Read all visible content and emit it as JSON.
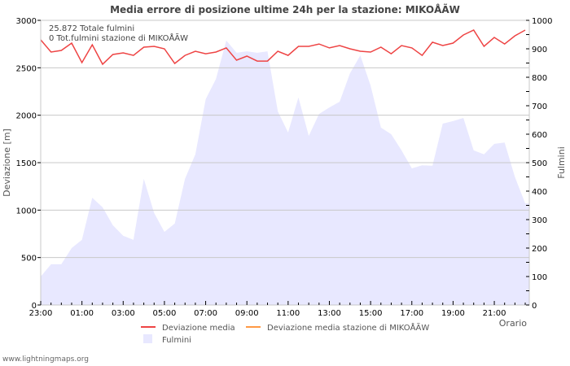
{
  "chart_data": {
    "type": "line",
    "title": "Media errore di posizione ultime 24h per la stazione: MIKOÅ\u001fÃ\u001fW",
    "xlabel": "Orario",
    "ylabel": "Deviazione  [m]",
    "y2label": "Fulmini",
    "ylim": [
      0,
      3000
    ],
    "y2lim": [
      0,
      1000
    ],
    "yticks": [
      0,
      500,
      1000,
      1500,
      2000,
      2500,
      3000
    ],
    "y2ticks": [
      0,
      100,
      200,
      300,
      400,
      500,
      600,
      700,
      800,
      900,
      1000
    ],
    "xticks": [
      "23:00",
      "01:00",
      "03:00",
      "05:00",
      "07:00",
      "09:00",
      "11:00",
      "13:00",
      "15:00",
      "17:00",
      "19:00",
      "21:00"
    ],
    "grid": true,
    "legend_position": "bottom",
    "annotations": [
      "25.872 Totale fulmini",
      "0 Tot.fulmini stazione di MIKOÅ\u001fÃ\u001fW"
    ],
    "x": [
      "23:00",
      "23:30",
      "00:00",
      "00:30",
      "01:00",
      "01:30",
      "02:00",
      "02:30",
      "03:00",
      "03:30",
      "04:00",
      "04:30",
      "05:00",
      "05:30",
      "06:00",
      "06:30",
      "07:00",
      "07:30",
      "08:00",
      "08:30",
      "09:00",
      "09:30",
      "10:00",
      "10:30",
      "11:00",
      "11:30",
      "12:00",
      "12:30",
      "13:00",
      "13:30",
      "14:00",
      "14:30",
      "15:00",
      "15:30",
      "16:00",
      "16:30",
      "17:00",
      "17:30",
      "18:00",
      "18:30",
      "19:00",
      "19:30",
      "20:00",
      "20:30",
      "21:00",
      "21:30",
      "22:00",
      "22:30"
    ],
    "series": [
      {
        "name": "Deviazione media",
        "axis": "left",
        "type": "line",
        "color": "#ee4444",
        "values": [
          2794,
          2666,
          2683,
          2760,
          2554,
          2743,
          2537,
          2640,
          2657,
          2631,
          2717,
          2726,
          2700,
          2546,
          2631,
          2674,
          2648,
          2666,
          2709,
          2580,
          2623,
          2571,
          2571,
          2674,
          2631,
          2726,
          2726,
          2751,
          2709,
          2734,
          2700,
          2674,
          2666,
          2717,
          2648,
          2734,
          2709,
          2631,
          2769,
          2734,
          2760,
          2846,
          2897,
          2726,
          2820,
          2751,
          2837,
          2897
        ]
      },
      {
        "name": "Deviazione media stazione di MIKOÅ\u001fÃ\u001fW",
        "axis": "left",
        "type": "line",
        "color": "#ff9944",
        "values": []
      },
      {
        "name": "Fulmini",
        "axis": "right",
        "type": "area",
        "color": "#e8e8ff",
        "values": [
          100,
          143,
          143,
          200,
          229,
          377,
          343,
          280,
          243,
          229,
          443,
          323,
          257,
          286,
          443,
          529,
          723,
          794,
          929,
          886,
          891,
          886,
          891,
          680,
          606,
          729,
          594,
          671,
          694,
          714,
          814,
          877,
          771,
          623,
          600,
          543,
          480,
          491,
          489,
          637,
          646,
          657,
          543,
          529,
          566,
          571,
          449,
          357
        ]
      }
    ]
  },
  "legend": {
    "items": [
      {
        "label": "Deviazione media",
        "color": "#ee4444"
      },
      {
        "label": "Deviazione media stazione di MIKOÅ\u001fÃ\u001fW",
        "color": "#ff9944"
      },
      {
        "label": "Fulmini",
        "color": "#e8e8ff"
      }
    ]
  },
  "footer": {
    "text": "www.lightningmaps.org"
  }
}
